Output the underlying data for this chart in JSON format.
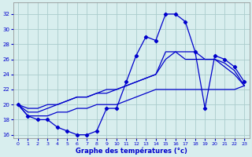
{
  "hours": [
    0,
    1,
    2,
    3,
    4,
    5,
    6,
    7,
    8,
    9,
    10,
    11,
    12,
    13,
    14,
    15,
    16,
    17,
    18,
    19,
    20,
    21,
    22,
    23
  ],
  "temp_main": [
    20,
    18.5,
    18,
    18,
    17,
    16.5,
    16,
    16,
    16.5,
    19.5,
    19.5,
    23,
    26.5,
    29,
    28.5,
    32,
    32,
    31,
    27,
    19.5,
    26.5,
    26,
    25,
    23
  ],
  "temp_line2": [
    20,
    19,
    19,
    19.5,
    20,
    20.5,
    21,
    21,
    21.5,
    21.5,
    22,
    22.5,
    23,
    23.5,
    24,
    26,
    27,
    26,
    26,
    26,
    26,
    25,
    24,
    22.5
  ],
  "temp_line3": [
    20,
    19.5,
    19.5,
    20,
    20,
    20.5,
    21,
    21,
    21.5,
    22,
    22,
    22.5,
    23,
    23.5,
    24,
    27,
    27,
    27,
    27,
    26,
    26,
    25.5,
    24.5,
    22.5
  ],
  "temp_line4": [
    20,
    18.5,
    18.5,
    18.5,
    19,
    19,
    19.5,
    19.5,
    20,
    20,
    20,
    20.5,
    21,
    21.5,
    22,
    22,
    22,
    22,
    22,
    22,
    22,
    22,
    22,
    22.5
  ],
  "bg_color": "#d8eeee",
  "grid_color": "#aacccc",
  "line_color": "#0000cc",
  "ylim": [
    15.5,
    33.5
  ],
  "xlim": [
    -0.5,
    23.5
  ],
  "yticks": [
    16,
    18,
    20,
    22,
    24,
    26,
    28,
    30,
    32
  ],
  "xticks": [
    0,
    1,
    2,
    3,
    4,
    5,
    6,
    7,
    8,
    9,
    10,
    11,
    12,
    13,
    14,
    15,
    16,
    17,
    18,
    19,
    20,
    21,
    22,
    23
  ],
  "xlabel": "Graphe des températures (°c)"
}
